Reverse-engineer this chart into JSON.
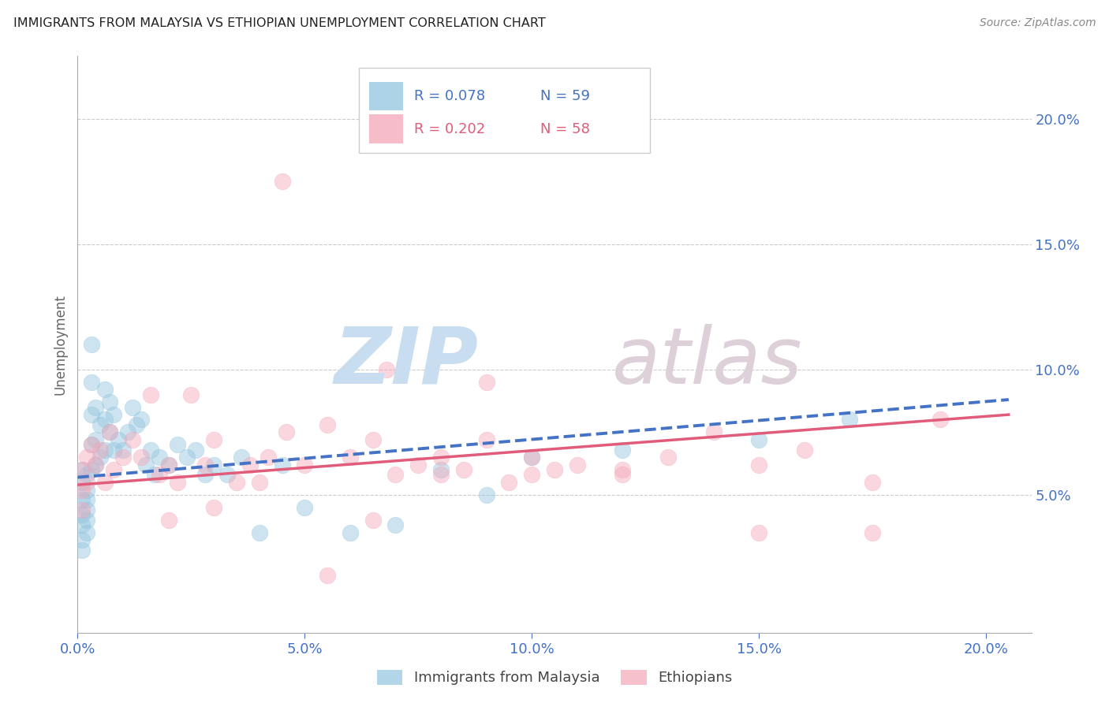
{
  "title": "IMMIGRANTS FROM MALAYSIA VS ETHIOPIAN UNEMPLOYMENT CORRELATION CHART",
  "source": "Source: ZipAtlas.com",
  "ylabel": "Unemployment",
  "color_blue": "#92C5DE",
  "color_pink": "#F4A6B8",
  "color_blue_line": "#4472C4",
  "color_pink_line": "#E05C7A",
  "color_axis": "#4472C4",
  "xlim": [
    0.0,
    0.21
  ],
  "ylim": [
    -0.005,
    0.225
  ],
  "xticks": [
    0.0,
    0.05,
    0.1,
    0.15,
    0.2
  ],
  "xtick_labels": [
    "0.0%",
    "5.0%",
    "10.0%",
    "15.0%",
    "20.0%"
  ],
  "yticks": [
    0.05,
    0.1,
    0.15,
    0.2
  ],
  "ytick_labels": [
    "5.0%",
    "10.0%",
    "15.0%",
    "20.0%"
  ],
  "blue_trend_x": [
    0.0,
    0.205
  ],
  "blue_trend_y": [
    0.057,
    0.088
  ],
  "pink_trend_x": [
    0.0,
    0.205
  ],
  "pink_trend_y": [
    0.054,
    0.082
  ],
  "blue_x": [
    0.001,
    0.001,
    0.001,
    0.001,
    0.001,
    0.001,
    0.001,
    0.002,
    0.002,
    0.002,
    0.002,
    0.002,
    0.002,
    0.003,
    0.003,
    0.003,
    0.003,
    0.003,
    0.004,
    0.004,
    0.004,
    0.005,
    0.005,
    0.006,
    0.006,
    0.006,
    0.007,
    0.007,
    0.008,
    0.008,
    0.009,
    0.01,
    0.011,
    0.012,
    0.013,
    0.014,
    0.015,
    0.016,
    0.017,
    0.018,
    0.02,
    0.022,
    0.024,
    0.026,
    0.028,
    0.03,
    0.033,
    0.036,
    0.04,
    0.045,
    0.05,
    0.06,
    0.07,
    0.08,
    0.09,
    0.1,
    0.12,
    0.15,
    0.17
  ],
  "blue_y": [
    0.06,
    0.055,
    0.048,
    0.042,
    0.038,
    0.032,
    0.028,
    0.058,
    0.052,
    0.048,
    0.044,
    0.04,
    0.035,
    0.11,
    0.095,
    0.082,
    0.07,
    0.06,
    0.085,
    0.072,
    0.062,
    0.078,
    0.065,
    0.092,
    0.08,
    0.068,
    0.087,
    0.075,
    0.082,
    0.068,
    0.072,
    0.068,
    0.075,
    0.085,
    0.078,
    0.08,
    0.062,
    0.068,
    0.058,
    0.065,
    0.062,
    0.07,
    0.065,
    0.068,
    0.058,
    0.062,
    0.058,
    0.065,
    0.035,
    0.062,
    0.045,
    0.035,
    0.038,
    0.06,
    0.05,
    0.065,
    0.068,
    0.072,
    0.08
  ],
  "pink_x": [
    0.001,
    0.001,
    0.001,
    0.002,
    0.002,
    0.003,
    0.004,
    0.005,
    0.006,
    0.007,
    0.008,
    0.01,
    0.012,
    0.014,
    0.016,
    0.018,
    0.02,
    0.022,
    0.025,
    0.028,
    0.03,
    0.035,
    0.038,
    0.042,
    0.046,
    0.05,
    0.055,
    0.06,
    0.065,
    0.07,
    0.075,
    0.08,
    0.085,
    0.09,
    0.095,
    0.1,
    0.105,
    0.11,
    0.12,
    0.13,
    0.14,
    0.15,
    0.16,
    0.175,
    0.19,
    0.04,
    0.068,
    0.09,
    0.15,
    0.175,
    0.1,
    0.055,
    0.03,
    0.12,
    0.065,
    0.02,
    0.08,
    0.045
  ],
  "pink_y": [
    0.06,
    0.052,
    0.044,
    0.065,
    0.055,
    0.07,
    0.062,
    0.068,
    0.055,
    0.075,
    0.06,
    0.065,
    0.072,
    0.065,
    0.09,
    0.058,
    0.062,
    0.055,
    0.09,
    0.062,
    0.072,
    0.055,
    0.062,
    0.065,
    0.075,
    0.062,
    0.078,
    0.065,
    0.072,
    0.058,
    0.062,
    0.065,
    0.06,
    0.072,
    0.055,
    0.065,
    0.06,
    0.062,
    0.06,
    0.065,
    0.075,
    0.062,
    0.068,
    0.055,
    0.08,
    0.055,
    0.1,
    0.095,
    0.035,
    0.035,
    0.058,
    0.018,
    0.045,
    0.058,
    0.04,
    0.04,
    0.058,
    0.175
  ]
}
